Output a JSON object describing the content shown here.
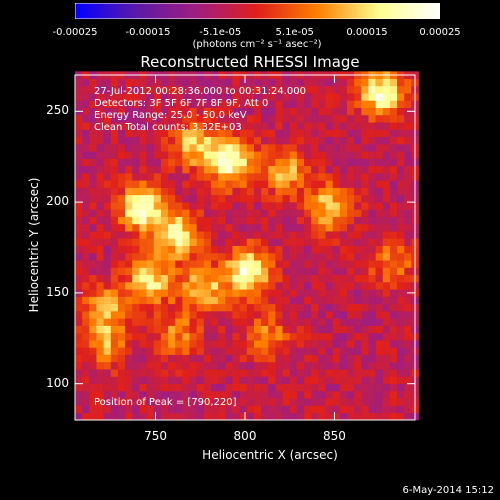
{
  "chart_data": {
    "type": "heatmap",
    "title": "Reconstructed RHESSI Image",
    "xlabel": "Heliocentric X (arcsec)",
    "ylabel": "Heliocentric Y (arcsec)",
    "xlim": [
      705,
      895
    ],
    "ylim": [
      80,
      270
    ],
    "xticks": [
      "750",
      "800",
      "850"
    ],
    "xtick_values": [
      750,
      800,
      850
    ],
    "yticks": [
      "100",
      "150",
      "200",
      "250"
    ],
    "ytick_values": [
      100,
      150,
      200,
      250
    ],
    "colorbar": {
      "min": -0.00025,
      "max": 0.00025,
      "ticks": [
        "-0.00025",
        "-0.00015",
        "-5.1e-05",
        "5.1e-05",
        "0.00015",
        "0.00025"
      ],
      "tick_values": [
        -0.00025,
        -0.00015,
        -5.1e-05,
        5.1e-05,
        0.00015,
        0.00025
      ],
      "unit": "(photons cm⁻² s⁻¹ asec⁻²)",
      "colors": [
        "#0000ff",
        "#5a1aa8",
        "#a01e80",
        "#e0201a",
        "#ff8000",
        "#ffff90",
        "#ffffff"
      ]
    },
    "annotations": {
      "time_range": "27-Jul-2012 00:28:36.000 to 00:31:24.000",
      "detectors": "Detectors: 3F 5F 6F 7F 8F 9F, Att 0",
      "energy_range": "Energy Range: 25.0 - 50.0 keV",
      "clean": "Clean     Total counts: 3.32E+03",
      "peak": "Position of Peak = [790,220]"
    },
    "peak_position": [
      790,
      220
    ],
    "bright_sources": [
      {
        "x": 740,
        "y": 195,
        "value": 0.00025
      },
      {
        "x": 745,
        "y": 155,
        "value": 0.0002
      },
      {
        "x": 760,
        "y": 180,
        "value": 0.00022
      },
      {
        "x": 775,
        "y": 150,
        "value": 0.00018
      },
      {
        "x": 800,
        "y": 160,
        "value": 0.00025
      },
      {
        "x": 790,
        "y": 220,
        "value": 0.00025
      },
      {
        "x": 770,
        "y": 230,
        "value": 0.00018
      },
      {
        "x": 820,
        "y": 215,
        "value": 0.00016
      },
      {
        "x": 845,
        "y": 195,
        "value": 0.00018
      },
      {
        "x": 875,
        "y": 258,
        "value": 0.00025
      },
      {
        "x": 880,
        "y": 165,
        "value": 0.00012
      },
      {
        "x": 720,
        "y": 140,
        "value": 0.00015
      },
      {
        "x": 720,
        "y": 120,
        "value": 0.00014
      },
      {
        "x": 760,
        "y": 125,
        "value": 0.00012
      },
      {
        "x": 810,
        "y": 125,
        "value": 0.00012
      }
    ]
  },
  "timestamp": "6-May-2014 15:12"
}
